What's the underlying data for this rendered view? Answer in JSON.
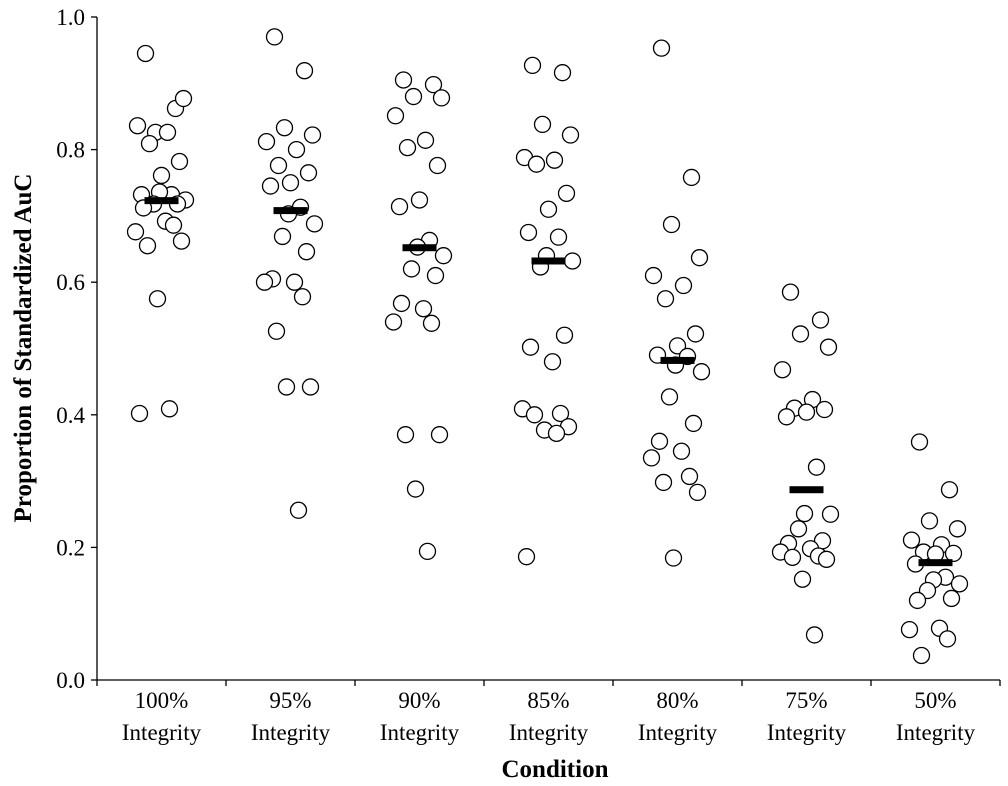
{
  "chart_data": {
    "type": "scatter",
    "title": "",
    "xlabel": "Condition",
    "ylabel": "Proportion of Standardized AuC",
    "ylim": [
      0.0,
      1.0
    ],
    "yticks": [
      "0.0",
      "0.2",
      "0.4",
      "0.6",
      "0.8",
      "1.0"
    ],
    "grid": false,
    "categories": [
      {
        "line1": "100%",
        "line2": "Integrity"
      },
      {
        "line1": "95%",
        "line2": "Integrity"
      },
      {
        "line1": "90%",
        "line2": "Integrity"
      },
      {
        "line1": "85%",
        "line2": "Integrity"
      },
      {
        "line1": "80%",
        "line2": "Integrity"
      },
      {
        "line1": "75%",
        "line2": "Integrity"
      },
      {
        "line1": "50%",
        "line2": "Integrity"
      }
    ],
    "means": [
      0.723,
      0.708,
      0.652,
      0.632,
      0.482,
      0.287,
      0.177
    ],
    "points": [
      [
        0.945,
        0.862,
        0.826,
        0.877,
        0.836,
        0.826,
        0.809,
        0.782,
        0.761,
        0.732,
        0.732,
        0.736,
        0.724,
        0.718,
        0.718,
        0.712,
        0.692,
        0.676,
        0.686,
        0.655,
        0.662,
        0.575,
        0.409,
        0.402
      ],
      [
        0.97,
        0.919,
        0.833,
        0.822,
        0.812,
        0.8,
        0.776,
        0.765,
        0.75,
        0.745,
        0.713,
        0.703,
        0.688,
        0.669,
        0.646,
        0.605,
        0.6,
        0.6,
        0.578,
        0.526,
        0.442,
        0.442,
        0.256
      ],
      [
        0.905,
        0.898,
        0.88,
        0.878,
        0.851,
        0.814,
        0.803,
        0.776,
        0.724,
        0.714,
        0.663,
        0.653,
        0.64,
        0.62,
        0.61,
        0.568,
        0.56,
        0.54,
        0.538,
        0.37,
        0.37,
        0.288,
        0.194
      ],
      [
        0.927,
        0.916,
        0.838,
        0.822,
        0.788,
        0.784,
        0.778,
        0.734,
        0.71,
        0.675,
        0.668,
        0.64,
        0.632,
        0.623,
        0.52,
        0.502,
        0.48,
        0.409,
        0.402,
        0.4,
        0.382,
        0.377,
        0.372,
        0.186
      ],
      [
        0.953,
        0.758,
        0.687,
        0.637,
        0.61,
        0.595,
        0.575,
        0.522,
        0.504,
        0.49,
        0.488,
        0.475,
        0.465,
        0.427,
        0.387,
        0.36,
        0.345,
        0.335,
        0.307,
        0.298,
        0.283,
        0.184
      ],
      [
        0.585,
        0.543,
        0.522,
        0.502,
        0.468,
        0.423,
        0.41,
        0.408,
        0.404,
        0.397,
        0.321,
        0.251,
        0.25,
        0.228,
        0.21,
        0.206,
        0.198,
        0.193,
        0.187,
        0.185,
        0.182,
        0.152,
        0.068
      ],
      [
        0.359,
        0.287,
        0.24,
        0.228,
        0.211,
        0.204,
        0.193,
        0.191,
        0.19,
        0.175,
        0.155,
        0.151,
        0.145,
        0.135,
        0.123,
        0.12,
        0.078,
        0.076,
        0.062,
        0.037
      ]
    ]
  }
}
